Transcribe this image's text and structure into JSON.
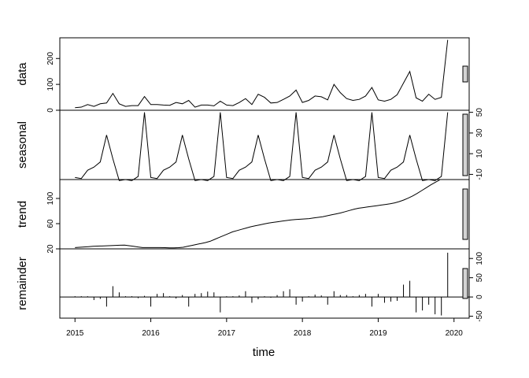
{
  "chart_data": {
    "type": "line",
    "title": "",
    "xlabel": "time",
    "x_ticks": [
      2015,
      2016,
      2017,
      2018,
      2019,
      2020
    ],
    "xlim": [
      2014.8,
      2020.2
    ],
    "grid": false,
    "legend": "none",
    "colors": {
      "line": "#000000",
      "scale_bar": "#d3d3d3"
    },
    "panels": [
      {
        "name": "data",
        "kind": "line",
        "ylim": [
          0,
          280
        ],
        "y_ticks": [
          0,
          100,
          200
        ],
        "tick_side": "left",
        "values": [
          10,
          12,
          22,
          15,
          25,
          28,
          65,
          25,
          15,
          18,
          18,
          53,
          22,
          22,
          20,
          19,
          30,
          25,
          38,
          12,
          20,
          20,
          17,
          35,
          20,
          18,
          30,
          45,
          22,
          62,
          50,
          28,
          30,
          42,
          55,
          78,
          30,
          38,
          55,
          52,
          40,
          100,
          68,
          45,
          38,
          42,
          55,
          88,
          40,
          35,
          42,
          60,
          105,
          150,
          48,
          35,
          62,
          42,
          50,
          272
        ]
      },
      {
        "name": "seasonal",
        "kind": "line",
        "ylim": [
          -15,
          52
        ],
        "y_ticks": [
          -10,
          10,
          30,
          50
        ],
        "tick_side": "right",
        "values": [
          -13,
          -14,
          -6,
          -3,
          2,
          28,
          5,
          -16,
          -15,
          -16,
          -12,
          50
        ]
      },
      {
        "name": "trend",
        "kind": "line",
        "ylim": [
          20,
          130
        ],
        "y_ticks": [
          20,
          60,
          100
        ],
        "tick_side": "left",
        "values": [
          22,
          22.5,
          23,
          23.5,
          24,
          24.3,
          24.6,
          24.9,
          25.2,
          25.5,
          25.8,
          26,
          25,
          24,
          23,
          22,
          22,
          22,
          22,
          22,
          21.8,
          21.5,
          21.5,
          21.8,
          22.5,
          24,
          25.5,
          27,
          28.5,
          30,
          32,
          35,
          38,
          41,
          44,
          47,
          49,
          51,
          53,
          55,
          56.5,
          58,
          59.5,
          61,
          62,
          63,
          64,
          65,
          66,
          66.5,
          67,
          67.5,
          68,
          69,
          70,
          71,
          72.5,
          74,
          75.5,
          77,
          79,
          81,
          83,
          84.5,
          85.5,
          86.5,
          87.5,
          88.5,
          89.5,
          90.5,
          91.5,
          93,
          95,
          97.5,
          100.5,
          104,
          108,
          112.5,
          117,
          121.5,
          125.5,
          129.5
        ],
        "x_start": 2015,
        "x_step": 0.0594
      },
      {
        "name": "remainder",
        "kind": "hist",
        "ylim": [
          -55,
          125
        ],
        "y_ticks": [
          -50,
          0,
          50,
          100
        ],
        "tick_side": "right",
        "values": [
          2,
          2,
          2,
          -8,
          -5,
          -25,
          28,
          12,
          2,
          2,
          -3,
          3,
          -25,
          8,
          10,
          2,
          -4,
          5,
          -25,
          8,
          10,
          14,
          12,
          -40,
          2,
          2,
          4,
          15,
          -15,
          -6,
          2,
          -2,
          5,
          15,
          20,
          -20,
          -12,
          2,
          6,
          4,
          -20,
          15,
          5,
          5,
          2,
          5,
          8,
          -25,
          8,
          -15,
          -12,
          -10,
          32,
          42,
          -40,
          -35,
          -20,
          -45,
          -48,
          115
        ]
      }
    ],
    "scale_bar_label": "scale bars show equal heights in data units"
  }
}
